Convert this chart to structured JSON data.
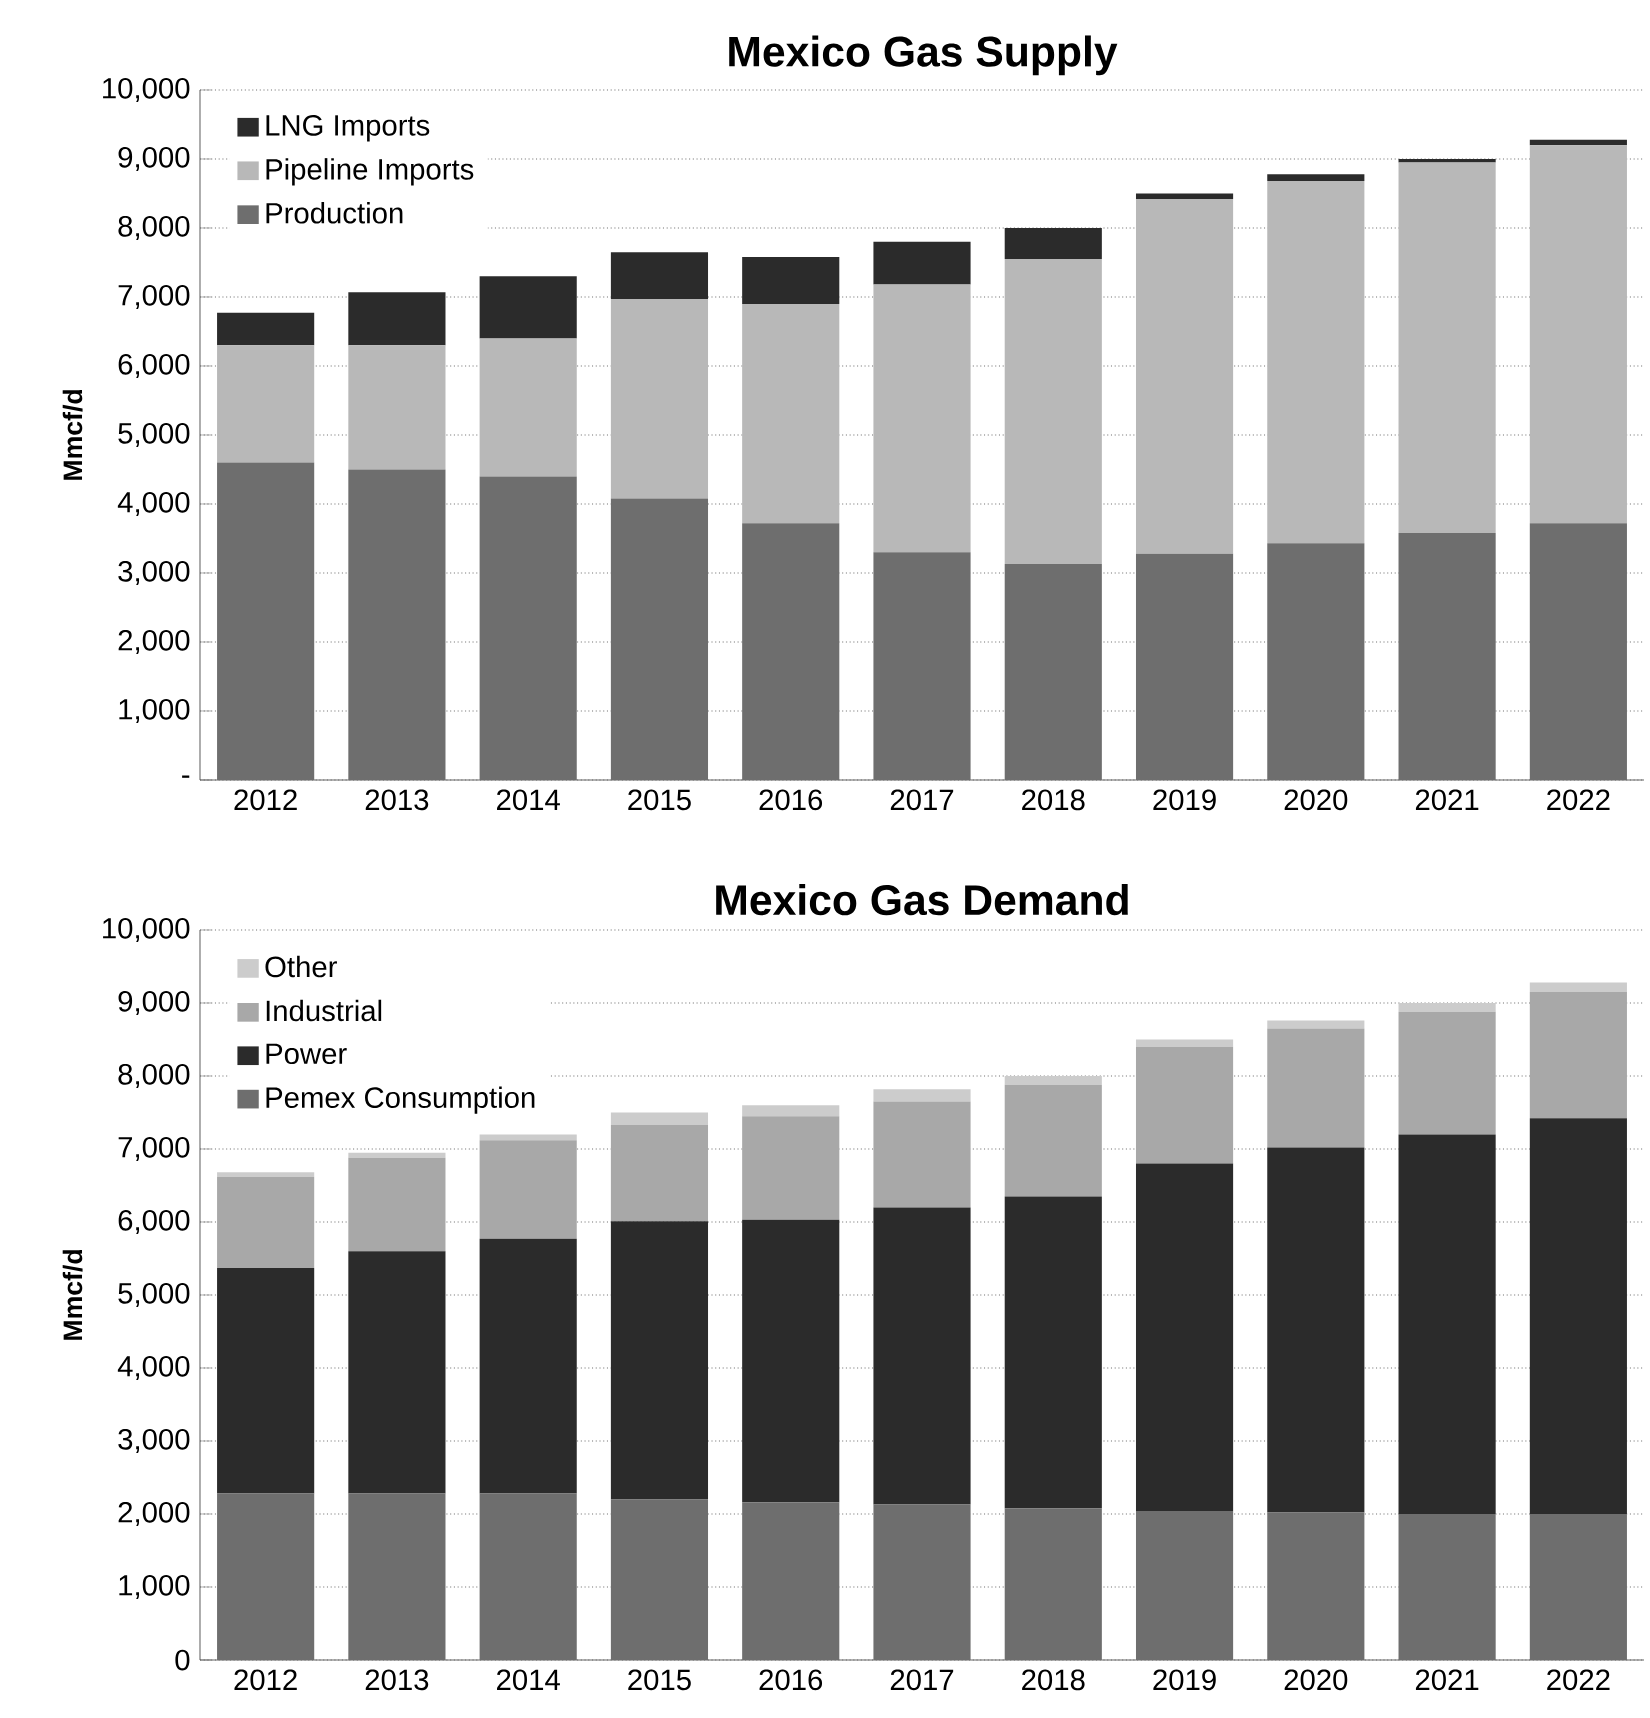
{
  "chart_data": [
    {
      "type": "bar",
      "title": "Mexico Gas Supply",
      "ylabel": "Mmcf/d",
      "stacked": true,
      "grid": "y",
      "legend": "top left",
      "categories": [
        "2012",
        "2013",
        "2014",
        "2015",
        "2016",
        "2017",
        "2018",
        "2019",
        "2020",
        "2021",
        "2022"
      ],
      "ylim": [
        0,
        10000
      ],
      "yticks": [
        {
          "value": 0,
          "label": "-"
        },
        {
          "value": 1000,
          "label": "1,000"
        },
        {
          "value": 2000,
          "label": "2,000"
        },
        {
          "value": 3000,
          "label": "3,000"
        },
        {
          "value": 4000,
          "label": "4,000"
        },
        {
          "value": 5000,
          "label": "5,000"
        },
        {
          "value": 6000,
          "label": "6,000"
        },
        {
          "value": 7000,
          "label": "7,000"
        },
        {
          "value": 8000,
          "label": "8,000"
        },
        {
          "value": 9000,
          "label": "9,000"
        },
        {
          "value": 10000,
          "label": "10,000"
        }
      ],
      "series": [
        {
          "name": "Production",
          "color": "#6e6e6e",
          "values": [
            4600,
            4500,
            4400,
            4080,
            3720,
            3300,
            3130,
            3280,
            3430,
            3580,
            3720
          ]
        },
        {
          "name": "Pipeline Imports",
          "color": "#b8b8b8",
          "values": [
            1700,
            1800,
            2000,
            2890,
            3180,
            3880,
            4420,
            5140,
            5250,
            5370,
            5480
          ]
        },
        {
          "name": "LNG Imports",
          "color": "#2b2b2b",
          "values": [
            470,
            770,
            900,
            680,
            680,
            620,
            450,
            80,
            100,
            50,
            80
          ]
        }
      ]
    },
    {
      "type": "bar",
      "title": "Mexico Gas Demand",
      "ylabel": "Mmcf/d",
      "stacked": true,
      "grid": "y",
      "legend": "top left",
      "categories": [
        "2012",
        "2013",
        "2014",
        "2015",
        "2016",
        "2017",
        "2018",
        "2019",
        "2020",
        "2021",
        "2022"
      ],
      "ylim": [
        0,
        10000
      ],
      "yticks": [
        0,
        {
          "value": 1000,
          "label": "1,000"
        },
        {
          "value": 2000,
          "label": "2,000"
        },
        {
          "value": 3000,
          "label": "3,000"
        },
        {
          "value": 4000,
          "label": "4,000"
        },
        {
          "value": 5000,
          "label": "5,000"
        },
        {
          "value": 6000,
          "label": "6,000"
        },
        {
          "value": 7000,
          "label": "7,000"
        },
        {
          "value": 8000,
          "label": "8,000"
        },
        {
          "value": 9000,
          "label": "9,000"
        },
        {
          "value": 10000,
          "label": "10,000"
        }
      ],
      "series": [
        {
          "name": "Pemex Consumption",
          "color": "#6e6e6e",
          "values": [
            2280,
            2280,
            2280,
            2200,
            2160,
            2130,
            2080,
            2040,
            2020,
            2000,
            2000
          ]
        },
        {
          "name": "Power",
          "color": "#2b2b2b",
          "values": [
            3090,
            3320,
            3490,
            3810,
            3870,
            4070,
            4270,
            4760,
            5000,
            5200,
            5420
          ]
        },
        {
          "name": "Industrial",
          "color": "#a8a8a8",
          "values": [
            1250,
            1280,
            1350,
            1320,
            1420,
            1450,
            1530,
            1600,
            1630,
            1680,
            1730
          ]
        },
        {
          "name": "Other",
          "color": "#cccccc",
          "values": [
            60,
            70,
            80,
            170,
            150,
            170,
            120,
            100,
            110,
            120,
            130
          ]
        }
      ]
    }
  ]
}
